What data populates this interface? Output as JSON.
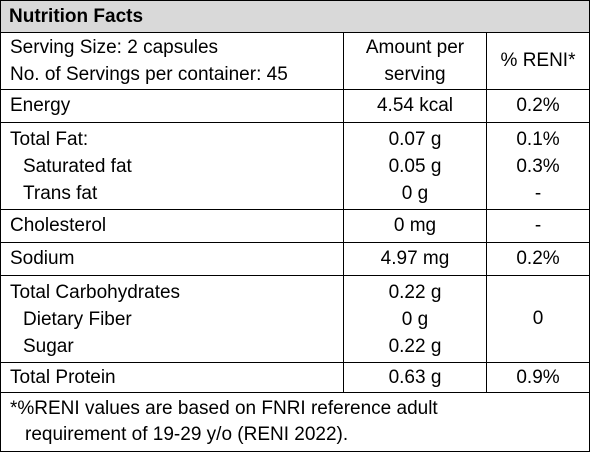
{
  "title": "Nutrition Facts",
  "header": {
    "serving_size": "Serving Size: 2 capsules",
    "servings_per_container": "No. of Servings per container: 45",
    "amount_col_line1": "Amount per",
    "amount_col_line2": "serving",
    "reni_col": "% RENI*"
  },
  "rows": {
    "energy": {
      "label": "Energy",
      "amount": "4.54 kcal",
      "reni": "0.2%"
    },
    "total_fat": {
      "label": "Total Fat:",
      "amount": "0.07 g",
      "reni": "0.1%"
    },
    "saturated_fat": {
      "label": "Saturated fat",
      "amount": "0.05 g",
      "reni": "0.3%"
    },
    "trans_fat": {
      "label": "Trans fat",
      "amount": "0 g",
      "reni": "-"
    },
    "cholesterol": {
      "label": "Cholesterol",
      "amount": "0 mg",
      "reni": "-"
    },
    "sodium": {
      "label": "Sodium",
      "amount": "4.97 mg",
      "reni": "0.2%"
    },
    "total_carbs": {
      "label": "Total Carbohydrates",
      "amount": "0.22 g"
    },
    "dietary_fiber": {
      "label": "Dietary Fiber",
      "amount": "0 g"
    },
    "sugar": {
      "label": "Sugar",
      "amount": "0.22 g"
    },
    "carbs_reni": "0",
    "total_protein": {
      "label": "Total Protein",
      "amount": "0.63 g",
      "reni": "0.9%"
    }
  },
  "footnote": {
    "line1": "*%RENI values are based on FNRI reference adult",
    "line2": "requirement of 19-29 y/o (RENI 2022)."
  }
}
